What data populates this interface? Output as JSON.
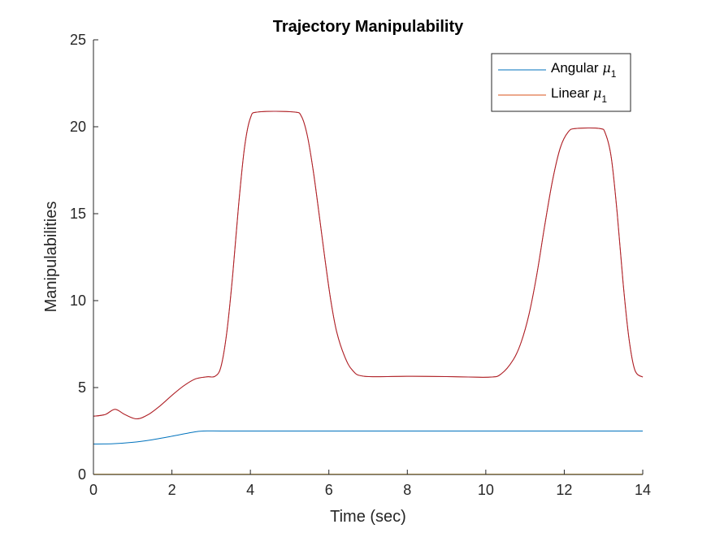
{
  "chart_data": {
    "type": "line",
    "title": "Trajectory Manipulability",
    "xlabel": "Time (sec)",
    "ylabel": "Manipulabilities",
    "xlim": [
      0,
      14
    ],
    "ylim": [
      0,
      25
    ],
    "xticks": [
      0,
      2,
      4,
      6,
      8,
      10,
      12,
      14
    ],
    "yticks": [
      0,
      5,
      10,
      15,
      20,
      25
    ],
    "grid": false,
    "legend_position": "top-right",
    "series": [
      {
        "name": "Angular μ1",
        "label_text": "Angular ",
        "label_symbol": "μ",
        "label_sub": "1",
        "color": "#0072BD",
        "x": [
          0,
          0.5,
          1.0,
          1.5,
          2.0,
          2.5,
          2.8,
          3.5,
          6,
          8,
          10,
          12,
          14
        ],
        "y": [
          1.75,
          1.77,
          1.85,
          2.0,
          2.2,
          2.42,
          2.5,
          2.5,
          2.5,
          2.5,
          2.5,
          2.5,
          2.5
        ]
      },
      {
        "name": "Linear μ1",
        "label_text": "Linear ",
        "label_symbol": "μ",
        "label_sub": "1",
        "color": "#D95319",
        "x": [
          0,
          0.3,
          0.55,
          0.8,
          1.1,
          1.4,
          1.7,
          2.0,
          2.3,
          2.6,
          2.9,
          3.1,
          3.25,
          3.4,
          3.55,
          3.7,
          3.85,
          4.0,
          4.2,
          5.1,
          5.3,
          5.45,
          5.6,
          5.75,
          5.9,
          6.05,
          6.2,
          6.4,
          6.6,
          6.9,
          8,
          9,
          10.1,
          10.4,
          10.7,
          10.9,
          11.1,
          11.3,
          11.5,
          11.7,
          11.9,
          12.1,
          12.3,
          12.9,
          13.05,
          13.2,
          13.35,
          13.5,
          13.65,
          13.8,
          14.0
        ],
        "y": [
          3.35,
          3.45,
          3.75,
          3.45,
          3.2,
          3.45,
          3.95,
          4.55,
          5.1,
          5.5,
          5.62,
          5.65,
          6.2,
          8.2,
          11.5,
          15.5,
          18.8,
          20.5,
          20.85,
          20.85,
          20.6,
          19.5,
          17.5,
          15.0,
          12.4,
          10.0,
          8.2,
          6.8,
          6.0,
          5.65,
          5.65,
          5.63,
          5.6,
          5.8,
          6.6,
          7.6,
          9.2,
          11.5,
          14.3,
          16.9,
          18.8,
          19.7,
          19.9,
          19.9,
          19.6,
          18.2,
          15.0,
          11.0,
          7.8,
          6.0,
          5.6
        ]
      },
      {
        "name": "",
        "color": "#EDB120",
        "x": [
          0,
          14
        ],
        "y": [
          0.02,
          0.02
        ]
      }
    ]
  }
}
